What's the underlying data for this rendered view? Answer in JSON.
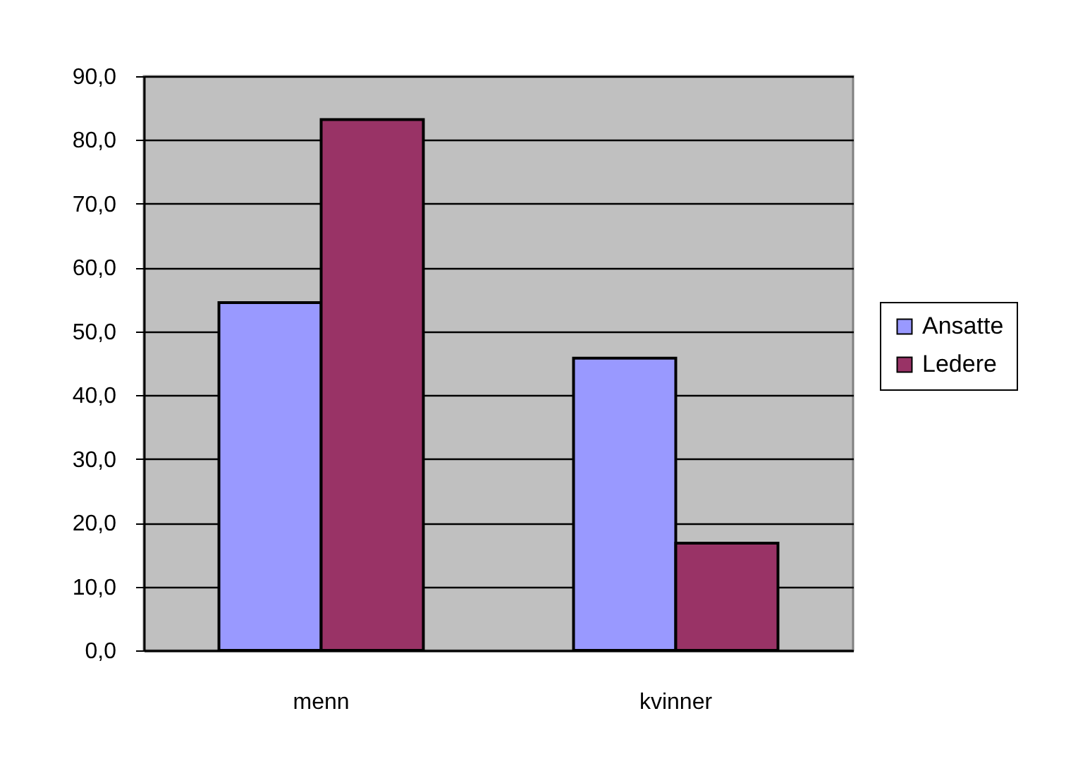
{
  "chart_data": {
    "type": "bar",
    "categories": [
      "menn",
      "kvinner"
    ],
    "series": [
      {
        "name": "Ansatte",
        "color": "#9999ff",
        "values": [
          54.5,
          45.8
        ]
      },
      {
        "name": "Ledere",
        "color": "#993366",
        "values": [
          83.2,
          16.8
        ]
      }
    ],
    "ylim": [
      0,
      90
    ],
    "yticks": [
      {
        "value": 0,
        "label": "0,0"
      },
      {
        "value": 10,
        "label": "10,0"
      },
      {
        "value": 20,
        "label": "20,0"
      },
      {
        "value": 30,
        "label": "30,0"
      },
      {
        "value": 40,
        "label": "40,0"
      },
      {
        "value": 50,
        "label": "50,0"
      },
      {
        "value": 60,
        "label": "60,0"
      },
      {
        "value": 70,
        "label": "70,0"
      },
      {
        "value": 80,
        "label": "80,0"
      },
      {
        "value": 90,
        "label": "90,0"
      }
    ],
    "grid": "y",
    "legend": "right"
  }
}
